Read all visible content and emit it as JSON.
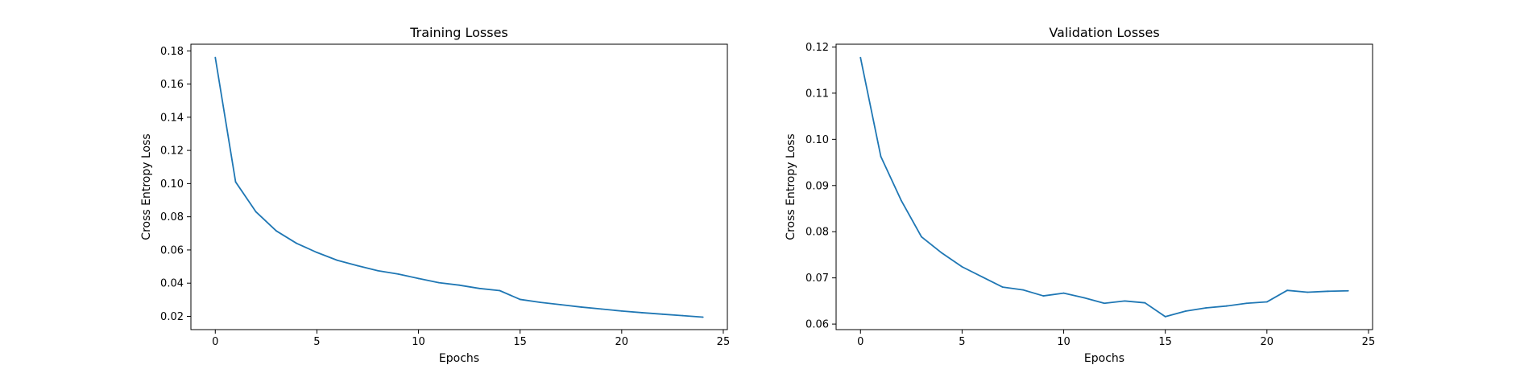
{
  "chart_data": [
    {
      "type": "line",
      "title": "Training Losses",
      "xlabel": "Epochs",
      "ylabel": "Cross Entropy Loss",
      "xlim": [
        -1.2,
        25.2
      ],
      "ylim": [
        0.012,
        0.184
      ],
      "xticks": [
        0,
        5,
        10,
        15,
        20,
        25
      ],
      "yticks": [
        0.02,
        0.04,
        0.06,
        0.08,
        0.1,
        0.12,
        0.14,
        0.16,
        0.18
      ],
      "ytick_labels": [
        "0.02",
        "0.04",
        "0.06",
        "0.08",
        "0.10",
        "0.12",
        "0.14",
        "0.16",
        "0.18"
      ],
      "grid": false,
      "series": [
        {
          "color": "#1f77b4",
          "x": [
            0,
            1,
            2,
            3,
            4,
            5,
            6,
            7,
            8,
            9,
            10,
            11,
            12,
            13,
            14,
            15,
            16,
            17,
            18,
            19,
            20,
            21,
            22,
            23,
            24
          ],
          "y": [
            0.176,
            0.101,
            0.083,
            0.0715,
            0.064,
            0.0585,
            0.0538,
            0.0505,
            0.0475,
            0.0455,
            0.0428,
            0.0403,
            0.0388,
            0.0368,
            0.0355,
            0.0302,
            0.0284,
            0.027,
            0.0256,
            0.0244,
            0.0232,
            0.0222,
            0.0213,
            0.0204,
            0.0195
          ]
        }
      ]
    },
    {
      "type": "line",
      "title": "Validation Losses",
      "xlabel": "Epochs",
      "ylabel": "Cross Entropy Loss",
      "xlim": [
        -1.2,
        25.2
      ],
      "ylim": [
        0.0588,
        0.1206
      ],
      "xticks": [
        0,
        5,
        10,
        15,
        20,
        25
      ],
      "yticks": [
        0.06,
        0.07,
        0.08,
        0.09,
        0.1,
        0.11,
        0.12
      ],
      "ytick_labels": [
        "0.06",
        "0.07",
        "0.08",
        "0.09",
        "0.10",
        "0.11",
        "0.12"
      ],
      "grid": false,
      "series": [
        {
          "color": "#1f77b4",
          "x": [
            0,
            1,
            2,
            3,
            4,
            5,
            6,
            7,
            8,
            9,
            10,
            11,
            12,
            13,
            14,
            15,
            16,
            17,
            18,
            19,
            20,
            21,
            22,
            23,
            24
          ],
          "y": [
            0.1177,
            0.0963,
            0.0868,
            0.0789,
            0.0754,
            0.0724,
            0.0702,
            0.068,
            0.0674,
            0.0661,
            0.0667,
            0.0657,
            0.0645,
            0.065,
            0.0646,
            0.0616,
            0.0628,
            0.0635,
            0.0639,
            0.0645,
            0.0648,
            0.0673,
            0.0669,
            0.0671,
            0.0672
          ]
        }
      ]
    }
  ]
}
